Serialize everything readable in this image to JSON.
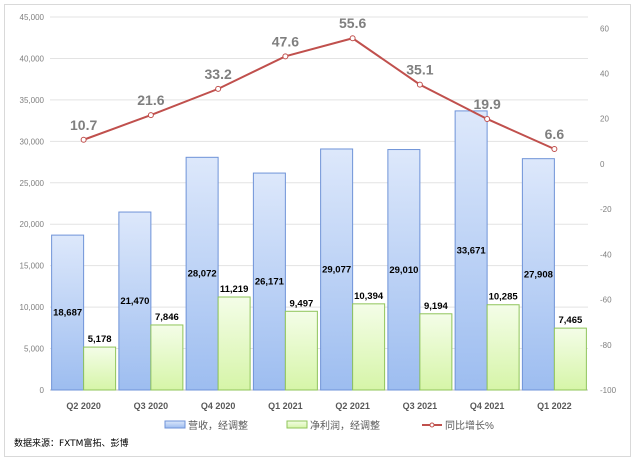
{
  "chart_data": {
    "type": "bar+line",
    "categories": [
      "Q2 2020",
      "Q3 2020",
      "Q4 2020",
      "Q1 2021",
      "Q2 2021",
      "Q3 2021",
      "Q4 2021",
      "Q1 2022"
    ],
    "series": [
      {
        "name": "营收，经调整",
        "type": "bar",
        "axis": "left",
        "values": [
          18687,
          21470,
          28072,
          26171,
          29077,
          29010,
          33671,
          27908
        ],
        "labels": [
          "18,687",
          "21,470",
          "28,072",
          "26,171",
          "29,077",
          "29,010",
          "33,671",
          "27,908"
        ],
        "color": "#9dbdf0"
      },
      {
        "name": "净利润，经调整",
        "type": "bar",
        "axis": "left",
        "values": [
          5178,
          7846,
          11219,
          9497,
          10394,
          9194,
          10285,
          7465
        ],
        "labels": [
          "5,178",
          "7,846",
          "11,219",
          "9,497",
          "10,394",
          "9,194",
          "10,285",
          "7,465"
        ],
        "color": "#d6f5a8"
      },
      {
        "name": "同比增长%",
        "type": "line",
        "axis": "right",
        "values": [
          10.7,
          21.6,
          33.2,
          47.6,
          55.6,
          35.1,
          19.9,
          6.6
        ],
        "labels": [
          "10.7",
          "21.6",
          "33.2",
          "47.6",
          "55.6",
          "35.1",
          "19.9",
          "6.6"
        ],
        "color": "#c0504d"
      }
    ],
    "ylim": [
      0,
      45000
    ],
    "y_ticks": [
      "0",
      "5,000",
      "10,000",
      "15,000",
      "20,000",
      "25,000",
      "30,000",
      "35,000",
      "40,000",
      "45,000"
    ],
    "y2lim": [
      -100,
      65
    ],
    "y2_ticks": [
      "-100",
      "-80",
      "-60",
      "-40",
      "-20",
      "0",
      "20",
      "40",
      "60"
    ],
    "grid": true,
    "legend": "bottom"
  },
  "source": "数据来源：FXTM富拓、彭博"
}
